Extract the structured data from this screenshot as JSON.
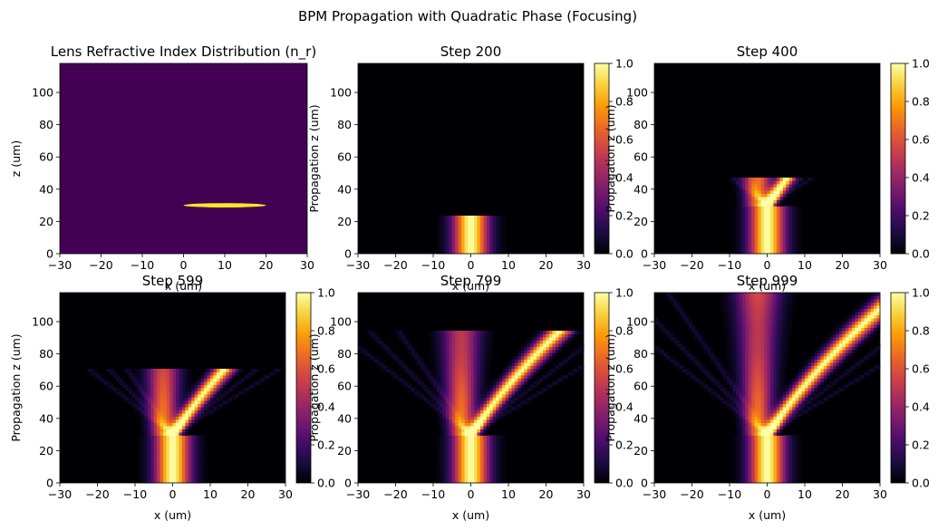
{
  "suptitle": "BPM Propagation with Quadratic Phase (Focusing)",
  "chart_data": [
    {
      "type": "heatmap",
      "title": "Lens Refractive Index Distribution (n_r)",
      "xlabel": "x (um)",
      "ylabel": "z (um)",
      "xlim": [
        -30,
        30
      ],
      "ylim": [
        0,
        118
      ],
      "xticks": [
        -30,
        -20,
        -10,
        0,
        10,
        20,
        30
      ],
      "yticks": [
        0,
        20,
        40,
        60,
        80,
        100
      ],
      "colormap": "viridis",
      "background_color": "#440154",
      "lens": {
        "x_range": [
          0,
          20
        ],
        "z_center": 30,
        "color": "#fde725"
      },
      "colorbar": false
    },
    {
      "type": "heatmap",
      "title": "Step 200",
      "xlabel": "x (um)",
      "ylabel": "Propagation z (um)",
      "xlim": [
        -30,
        30
      ],
      "ylim": [
        0,
        118
      ],
      "xticks": [
        -30,
        -20,
        -10,
        0,
        10,
        20,
        30
      ],
      "yticks": [
        0,
        20,
        40,
        60,
        80,
        100
      ],
      "colormap": "inferno",
      "front_z": 23.6,
      "colorbar": {
        "ticks": [
          "0.0",
          "0.2",
          "0.4",
          "0.6",
          "0.8",
          "1.0"
        ],
        "range": [
          0,
          1
        ]
      }
    },
    {
      "type": "heatmap",
      "title": "Step 400",
      "xlabel": "x (um)",
      "ylabel": "Propagation z (um)",
      "xlim": [
        -30,
        30
      ],
      "ylim": [
        0,
        118
      ],
      "xticks": [
        -30,
        -20,
        -10,
        0,
        10,
        20,
        30
      ],
      "yticks": [
        0,
        20,
        40,
        60,
        80,
        100
      ],
      "colormap": "inferno",
      "front_z": 47.2,
      "colorbar": {
        "ticks": [
          "0.0",
          "0.2",
          "0.4",
          "0.6",
          "0.8",
          "1.0"
        ],
        "range": [
          0,
          1
        ]
      }
    },
    {
      "type": "heatmap",
      "title": "Step 599",
      "xlabel": "x (um)",
      "ylabel": "Propagation z (um)",
      "xlim": [
        -30,
        30
      ],
      "ylim": [
        0,
        118
      ],
      "xticks": [
        -30,
        -20,
        -10,
        0,
        10,
        20,
        30
      ],
      "yticks": [
        0,
        20,
        40,
        60,
        80,
        100
      ],
      "colormap": "inferno",
      "front_z": 70.7,
      "colorbar": {
        "ticks": [
          "0.0",
          "0.2",
          "0.4",
          "0.6",
          "0.8",
          "1.0"
        ],
        "range": [
          0,
          1
        ]
      }
    },
    {
      "type": "heatmap",
      "title": "Step 799",
      "xlabel": "x (um)",
      "ylabel": "Propagation z (um)",
      "xlim": [
        -30,
        30
      ],
      "ylim": [
        0,
        118
      ],
      "xticks": [
        -30,
        -20,
        -10,
        0,
        10,
        20,
        30
      ],
      "yticks": [
        0,
        20,
        40,
        60,
        80,
        100
      ],
      "colormap": "inferno",
      "front_z": 94.3,
      "colorbar": {
        "ticks": [
          "0.0",
          "0.2",
          "0.4",
          "0.6",
          "0.8",
          "1.0"
        ],
        "range": [
          0,
          1
        ]
      }
    },
    {
      "type": "heatmap",
      "title": "Step 999",
      "xlabel": "x (um)",
      "ylabel": "Propagation z (um)",
      "xlim": [
        -30,
        30
      ],
      "ylim": [
        0,
        118
      ],
      "xticks": [
        -30,
        -20,
        -10,
        0,
        10,
        20,
        30
      ],
      "yticks": [
        0,
        20,
        40,
        60,
        80,
        100
      ],
      "colormap": "inferno",
      "front_z": 118,
      "colorbar": {
        "ticks": [
          "0.0",
          "0.2",
          "0.4",
          "0.6",
          "0.8",
          "1.0"
        ],
        "range": [
          0,
          1
        ]
      }
    }
  ],
  "field_model": {
    "source_beam": {
      "center_x": 0,
      "width_x": 3.2,
      "peak": 1.0
    },
    "lens_plane_z": 30,
    "focused_beam": {
      "start_x": 0,
      "slope_dx_dz": 0.29,
      "curvature": 0.0012,
      "width_x": 1.3,
      "peak": 1.0
    },
    "straight_beam": {
      "center_x": -2.5,
      "width_x": 2.2,
      "peak": 0.72
    }
  },
  "colors": {
    "viridis_low": "#440154",
    "viridis_high": "#fde725",
    "inferno_stops": [
      "#000004",
      "#1b0c41",
      "#4a0c6b",
      "#781c6d",
      "#a52c60",
      "#cf4446",
      "#ed6925",
      "#fb9b06",
      "#f7d13d",
      "#fcffa4"
    ]
  }
}
